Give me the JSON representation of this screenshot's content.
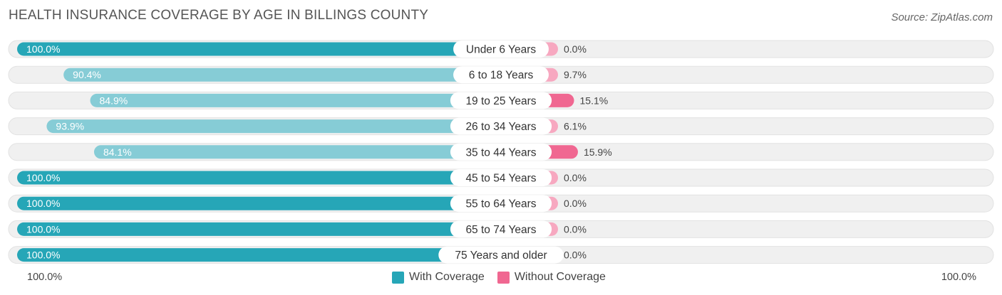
{
  "header": {
    "title": "HEALTH INSURANCE COVERAGE BY AGE IN BILLINGS COUNTY",
    "source": "Source: ZipAtlas.com"
  },
  "colors": {
    "with_strong": "#26a6b7",
    "with_light": "#86ccd6",
    "without_strong": "#f06791",
    "without_light": "#f7a8c0",
    "row_bg": "#f0f0f0"
  },
  "chart_data": {
    "type": "bar",
    "orientation": "diverging-horizontal",
    "title": "HEALTH INSURANCE COVERAGE BY AGE IN BILLINGS COUNTY",
    "categories": [
      "Under 6 Years",
      "6 to 18 Years",
      "19 to 25 Years",
      "26 to 34 Years",
      "35 to 44 Years",
      "45 to 54 Years",
      "55 to 64 Years",
      "65 to 74 Years",
      "75 Years and older"
    ],
    "series": [
      {
        "name": "With Coverage",
        "values": [
          100.0,
          90.4,
          84.9,
          93.9,
          84.1,
          100.0,
          100.0,
          100.0,
          100.0
        ],
        "labels": [
          "100.0%",
          "90.4%",
          "84.9%",
          "93.9%",
          "84.1%",
          "100.0%",
          "100.0%",
          "100.0%",
          "100.0%"
        ]
      },
      {
        "name": "Without Coverage",
        "values": [
          0.0,
          9.7,
          15.1,
          6.1,
          15.9,
          0.0,
          0.0,
          0.0,
          0.0
        ],
        "labels": [
          "0.0%",
          "9.7%",
          "15.1%",
          "6.1%",
          "15.9%",
          "0.0%",
          "0.0%",
          "0.0%",
          "0.0%"
        ]
      }
    ],
    "xlim": [
      0,
      100
    ],
    "axis_left_label": "100.0%",
    "axis_right_label": "100.0%",
    "legend_position": "bottom-center"
  }
}
